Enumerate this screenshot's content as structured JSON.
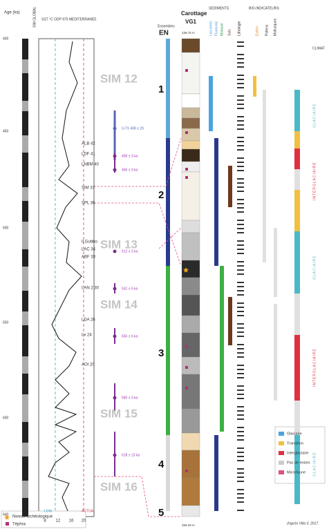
{
  "header": {
    "age": "Age (ka)",
    "sim": "SIM GLOBAL",
    "sst": "SST °C ODP 975 MEDITERRANEE",
    "ensembles": "Ensembles",
    "en": "EN",
    "core_title": "Carottage",
    "core_name": "VG1",
    "core_top": "238.75 m",
    "core_bottom": "459.29 m",
    "sediments": "SEDIMENTS",
    "bio": "BIO-INDICATEURS",
    "climate": "CLIMAT"
  },
  "age_ticks": [
    "400",
    "450",
    "500",
    "550",
    "600",
    "640"
  ],
  "sst_ticks": [
    "8",
    "12",
    "16",
    "20"
  ],
  "lgm": "LGM",
  "actual": "ACTUAL",
  "sim_stages": [
    "SIM 12",
    "SIM 13",
    "SIM 14",
    "SIM 15",
    "SIM 16"
  ],
  "events": [
    "ALB 42",
    "LDF 41",
    "LNBM 40",
    "SIM 37",
    "SPL 36",
    "Il Gubbo",
    "LAC 34",
    "ABF 33",
    "LAN 2 30",
    "LDA 26",
    "Lv 24",
    "AOI 20"
  ],
  "tephra_dates": [
    "U-Th 408 ± 29",
    "458 ± 3 ka",
    "456 ± 3 ka",
    "512 ± 3 ka",
    "531 ± 5 ka",
    "556 ± 6 ka",
    "585 ± 3 ka",
    "618 ± 13 ka"
  ],
  "ensembles": [
    "1",
    "2",
    "3",
    "4",
    "5"
  ],
  "sediment_columns": [
    "Lacustres",
    "Fluvio-lac",
    "Molasse",
    "Sols",
    "Lithologie"
  ],
  "bio_columns": [
    "Eolien",
    "Pollens",
    "Mollusques"
  ],
  "climate_labels": [
    "GLACIAIRE",
    "INTERGLACIAIRE",
    "GLACIAIRE",
    "INTERGLACIAIRE",
    "GLACIAIRE"
  ],
  "legend": [
    "Glaciaire",
    "Transition",
    "Interglaciaire",
    "Pas de restes",
    "Microfaune"
  ],
  "symbols": [
    "Niveau archéologique",
    "Téphra"
  ],
  "credit": "d'après Villa V. 2017"
}
